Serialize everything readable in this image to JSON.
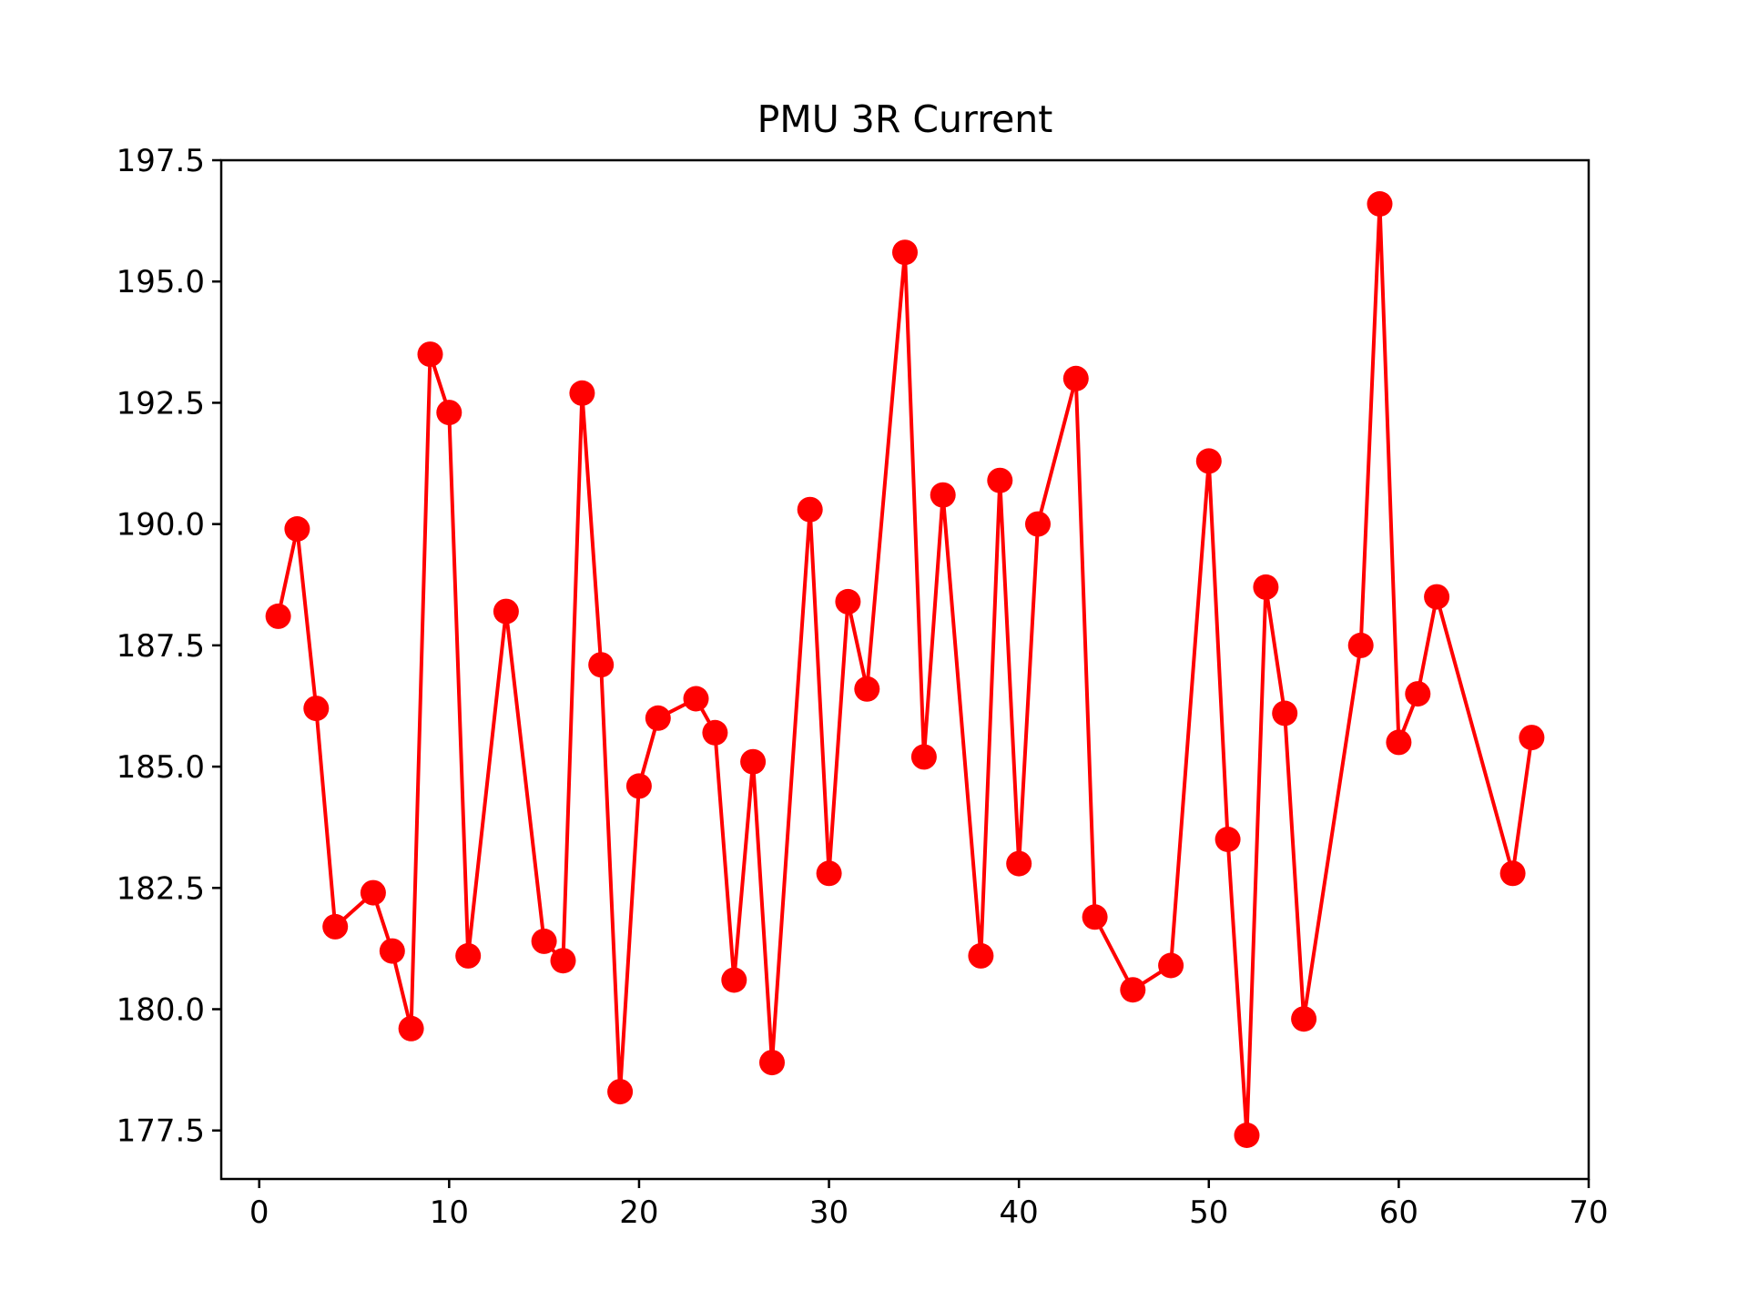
{
  "chart_data": {
    "type": "line",
    "title": "PMU 3R Current",
    "xlabel": "",
    "ylabel": "",
    "xlim": [
      -2,
      70
    ],
    "ylim": [
      176.5,
      197.5
    ],
    "x_ticks": [
      0,
      10,
      20,
      30,
      40,
      50,
      60,
      70
    ],
    "y_ticks": [
      177.5,
      180.0,
      182.5,
      185.0,
      187.5,
      190.0,
      192.5,
      195.0,
      197.5
    ],
    "x_tick_labels": [
      "0",
      "10",
      "20",
      "30",
      "40",
      "50",
      "60",
      "70"
    ],
    "y_tick_labels": [
      "177.5",
      "180.0",
      "182.5",
      "185.0",
      "187.5",
      "190.0",
      "192.5",
      "195.0",
      "197.5"
    ],
    "grid": false,
    "legend": "none",
    "colors": {
      "line": "#ff0000",
      "marker": "#ff0000",
      "axes": "#000000",
      "background": "#ffffff"
    },
    "series": [
      {
        "x": [
          1,
          2,
          3,
          4,
          6,
          7,
          8,
          9,
          10,
          11,
          13,
          15,
          16,
          17,
          18,
          19,
          20,
          21,
          23,
          24,
          25,
          26,
          27,
          29,
          30,
          31,
          32,
          34,
          35,
          36,
          38,
          39,
          40,
          41,
          43,
          44,
          46,
          48,
          50,
          51,
          52,
          53,
          54,
          55,
          58,
          59,
          60,
          61,
          62,
          66,
          67
        ],
        "values": [
          188.1,
          189.9,
          186.2,
          181.7,
          182.4,
          181.2,
          179.6,
          193.5,
          192.3,
          181.1,
          188.2,
          181.4,
          181.0,
          192.7,
          187.1,
          178.3,
          184.6,
          186.0,
          186.4,
          185.7,
          180.6,
          185.1,
          178.9,
          190.3,
          182.8,
          188.4,
          186.6,
          195.6,
          185.2,
          190.6,
          181.1,
          190.9,
          183.0,
          190.0,
          193.0,
          181.9,
          180.4,
          180.9,
          191.3,
          183.5,
          177.4,
          188.7,
          186.1,
          179.8,
          187.5,
          196.6,
          185.5,
          186.5,
          188.5,
          182.8,
          185.6
        ]
      }
    ]
  }
}
